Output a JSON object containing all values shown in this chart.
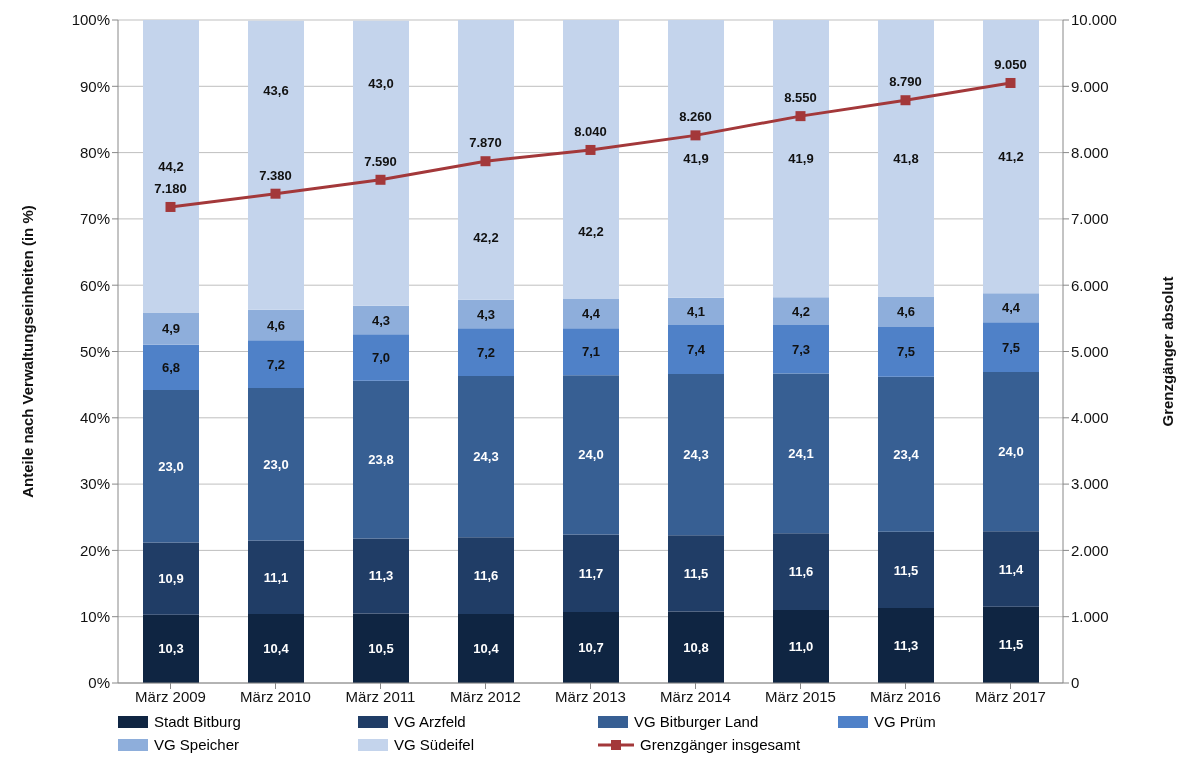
{
  "chart_data": {
    "type": "bar",
    "stacked": true,
    "categories": [
      "März 2009",
      "März 2010",
      "März 2011",
      "März 2012",
      "März 2013",
      "März 2014",
      "März 2015",
      "März 2016",
      "März 2017"
    ],
    "ylabel": "Anteile nach Verwaltungseinheiten (in %)",
    "y2label": "Grenzgänger absolut",
    "ylim": [
      0,
      100
    ],
    "yticks": [
      {
        "value": 0,
        "label": "0%"
      },
      {
        "value": 10,
        "label": "10%"
      },
      {
        "value": 20,
        "label": "20%"
      },
      {
        "value": 30,
        "label": "30%"
      },
      {
        "value": 40,
        "label": "40%"
      },
      {
        "value": 50,
        "label": "50%"
      },
      {
        "value": 60,
        "label": "60%"
      },
      {
        "value": 70,
        "label": "70%"
      },
      {
        "value": 80,
        "label": "80%"
      },
      {
        "value": 90,
        "label": "90%"
      },
      {
        "value": 100,
        "label": "100%"
      }
    ],
    "y2lim": [
      0,
      10000
    ],
    "y2ticks": [
      0,
      {
        "value": 1000,
        "label": "1.000"
      },
      {
        "value": 2000,
        "label": "2.000"
      },
      {
        "value": 3000,
        "label": "3.000"
      },
      {
        "value": 4000,
        "label": "4.000"
      },
      {
        "value": 5000,
        "label": "5.000"
      },
      {
        "value": 6000,
        "label": "6.000"
      },
      {
        "value": 7000,
        "label": "7.000"
      },
      {
        "value": 8000,
        "label": "8.000"
      },
      {
        "value": 9000,
        "label": "9.000"
      },
      {
        "value": 10000,
        "label": "10.000"
      }
    ],
    "grid": "y",
    "legend": "bottom",
    "series": [
      {
        "name": "Stadt Bitburg",
        "color": "#0f2542",
        "values": [
          10.3,
          10.4,
          10.5,
          10.4,
          10.7,
          10.8,
          11.0,
          11.3,
          11.5
        ],
        "value_labels": [
          "10,3",
          "10,4",
          "10,5",
          "10,4",
          "10,7",
          "10,8",
          "11,0",
          "11,3",
          "11,5"
        ]
      },
      {
        "name": "VG Arzfeld",
        "color": "#203d66",
        "values": [
          10.9,
          11.1,
          11.3,
          11.6,
          11.7,
          11.5,
          11.6,
          11.5,
          11.4
        ],
        "value_labels": [
          "10,9",
          "11,1",
          "11,3",
          "11,6",
          "11,7",
          "11,5",
          "11,6",
          "11,5",
          "11,4"
        ]
      },
      {
        "name": "VG Bitburger Land",
        "color": "#375f93",
        "values": [
          23.0,
          23.0,
          23.8,
          24.3,
          24.0,
          24.3,
          24.1,
          23.4,
          24.0
        ],
        "value_labels": [
          "23,0",
          "23,0",
          "23,8",
          "24,3",
          "24,0",
          "24,3",
          "24,1",
          "23,4",
          "24,0"
        ]
      },
      {
        "name": "VG Prüm",
        "color": "#4f81c8",
        "values": [
          6.8,
          7.2,
          7.0,
          7.2,
          7.1,
          7.4,
          7.3,
          7.5,
          7.5
        ],
        "value_labels": [
          "6,8",
          "7,2",
          "7,0",
          "7,2",
          "7,1",
          "7,4",
          "7,3",
          "7,5",
          "7,5"
        ]
      },
      {
        "name": "VG Speicher",
        "color": "#8eaedb",
        "values": [
          4.9,
          4.6,
          4.3,
          4.3,
          4.4,
          4.1,
          4.2,
          4.6,
          4.4
        ],
        "value_labels": [
          "4,9",
          "4,6",
          "4,3",
          "4,3",
          "4,4",
          "4,1",
          "4,2",
          "4,6",
          "4,4"
        ]
      },
      {
        "name": "VG Südeifel",
        "color": "#c4d4ec",
        "values": [
          44.2,
          43.6,
          43.0,
          42.2,
          42.2,
          41.9,
          41.9,
          41.8,
          41.2
        ],
        "value_labels": [
          "44,2",
          "43,6",
          "43,0",
          "42,2",
          "42,2",
          "41,9",
          "41,9",
          "41,8",
          "41,2"
        ]
      },
      {
        "name": "Grenzgänger insgesamt",
        "type": "line",
        "axis": "y2",
        "color": "#a3383a",
        "marker": "square",
        "line_style": "solid",
        "values": [
          7180,
          7380,
          7590,
          7870,
          8040,
          8260,
          8550,
          8790,
          9050
        ],
        "value_labels": [
          "7.180",
          "7.380",
          "7.590",
          "7.870",
          "8.040",
          "8.260",
          "8.550",
          "8.790",
          "9.050"
        ]
      }
    ]
  }
}
